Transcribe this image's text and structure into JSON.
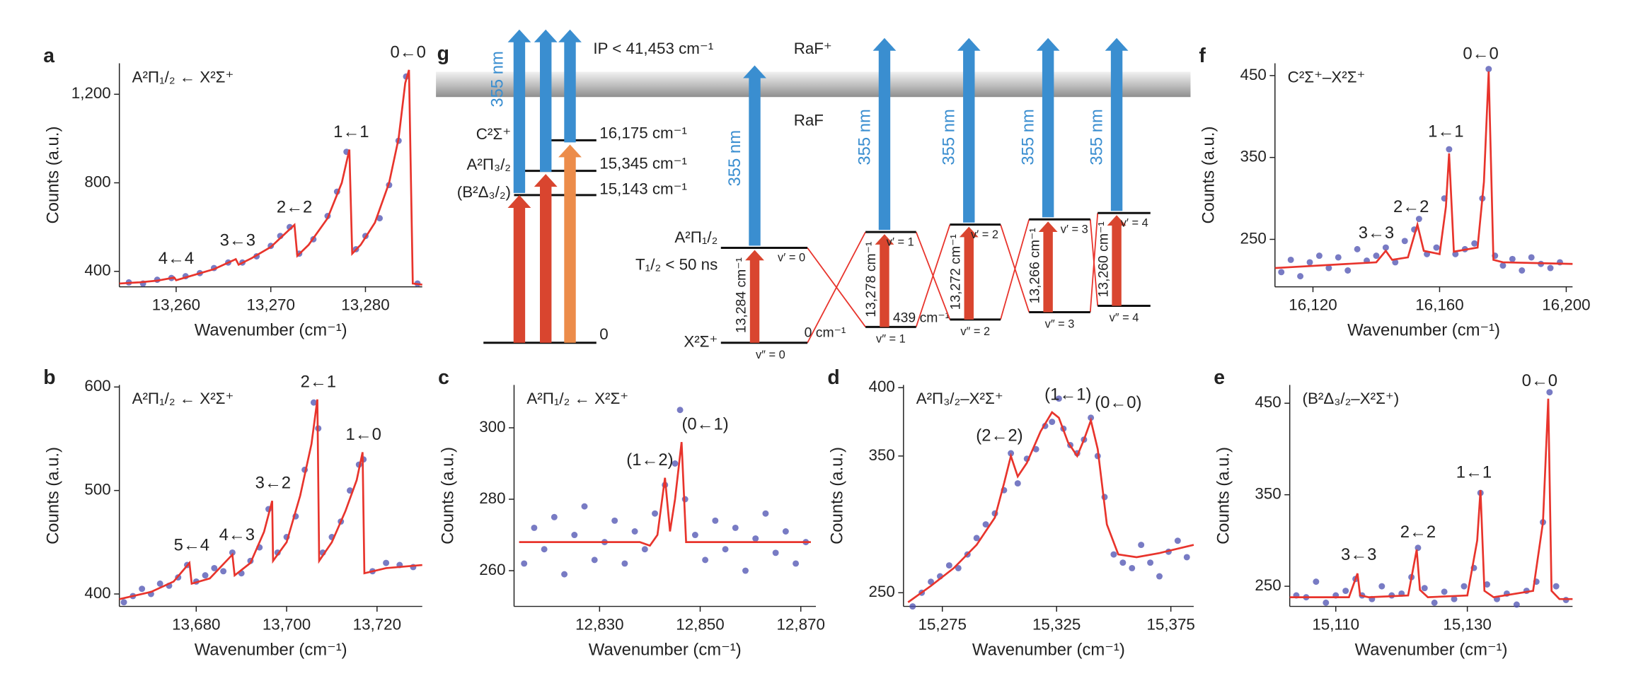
{
  "chart_data": [
    {
      "type": "line",
      "label": "a",
      "title": "A²Π₁/₂ ← X²Σ⁺",
      "xlabel": "Wavenumber (cm⁻¹)",
      "ylabel": "Counts (a.u.)",
      "xlim": [
        13254,
        13286
      ],
      "ylim": [
        330,
        1340
      ],
      "xticks": [
        {
          "value": 13260,
          "label": "13,260"
        },
        {
          "value": 13270,
          "label": "13,270"
        },
        {
          "value": 13280,
          "label": "13,280"
        }
      ],
      "yticks": [
        400,
        800,
        {
          "value": 1200,
          "label": "1,200"
        }
      ],
      "series": [
        {
          "style": "points",
          "color": "#4b4fb0",
          "x": [
            13255,
            13256.5,
            13258,
            13259.5,
            13261,
            13262.5,
            13264,
            13265.5,
            13267,
            13268.5,
            13270,
            13271,
            13272,
            13273,
            13274.5,
            13276,
            13277,
            13278,
            13279,
            13280,
            13281.5,
            13282.5,
            13283.5,
            13284.3,
            13285.5
          ],
          "values": [
            350,
            345,
            362,
            370,
            378,
            392,
            415,
            440,
            440,
            468,
            515,
            560,
            600,
            480,
            545,
            650,
            760,
            940,
            500,
            560,
            640,
            790,
            990,
            1280,
            345
          ]
        },
        {
          "style": "line",
          "color": "#e8342c",
          "x": [
            13254,
            13256,
            13258,
            13259.8,
            13260,
            13262,
            13264,
            13266.3,
            13266.6,
            13268,
            13270,
            13271.5,
            13272.5,
            13272.8,
            13274,
            13276,
            13277.5,
            13278.3,
            13278.6,
            13279.5,
            13281,
            13282.5,
            13283.5,
            13284.2,
            13284.6,
            13285,
            13286
          ],
          "values": [
            345,
            350,
            358,
            372,
            360,
            385,
            410,
            455,
            430,
            460,
            510,
            570,
            610,
            470,
            520,
            640,
            800,
            950,
            480,
            520,
            620,
            800,
            1000,
            1250,
            1310,
            345,
            340
          ]
        }
      ],
      "annotations": [
        {
          "text": "4←4",
          "x": 13260,
          "y": 378
        },
        {
          "text": "3←3",
          "x": 13266.5,
          "y": 460
        },
        {
          "text": "2←2",
          "x": 13272.5,
          "y": 610
        },
        {
          "text": "1←1",
          "x": 13278.5,
          "y": 950
        },
        {
          "text": "0←0",
          "x": 13284.5,
          "y": 1310
        }
      ]
    },
    {
      "type": "line",
      "label": "b",
      "title": "A²Π₁/₂ ← X²Σ⁺",
      "xlabel": "Wavenumber (cm⁻¹)",
      "ylabel": "Counts (a.u.)",
      "xlim": [
        13663,
        13730
      ],
      "ylim": [
        388,
        602
      ],
      "xticks": [
        {
          "value": 13680,
          "label": "13,680"
        },
        {
          "value": 13700,
          "label": "13,700"
        },
        {
          "value": 13720,
          "label": "13,720"
        }
      ],
      "yticks": [
        400,
        500,
        600
      ],
      "series": [
        {
          "style": "points",
          "color": "#4b4fb0",
          "x": [
            13664,
            13666,
            13668,
            13670,
            13672,
            13674,
            13676,
            13678,
            13680,
            13682,
            13684,
            13686,
            13688,
            13690,
            13692,
            13694,
            13696,
            13698,
            13700,
            13702,
            13704,
            13706,
            13707,
            13708,
            13710,
            13712,
            13714,
            13716,
            13717,
            13719,
            13722,
            13725,
            13728
          ],
          "values": [
            392,
            398,
            405,
            400,
            410,
            408,
            416,
            428,
            412,
            418,
            425,
            422,
            440,
            420,
            432,
            445,
            482,
            440,
            455,
            475,
            520,
            585,
            560,
            440,
            455,
            470,
            500,
            525,
            530,
            422,
            430,
            428,
            426
          ]
        },
        {
          "style": "line",
          "color": "#e8342c",
          "x": [
            13663,
            13670,
            13675,
            13678.5,
            13679,
            13683,
            13688,
            13688.5,
            13692,
            13695,
            13696.8,
            13697,
            13700,
            13703,
            13705.5,
            13706.8,
            13707.2,
            13710,
            13713,
            13715.5,
            13716.8,
            13717.2,
            13722,
            13730
          ],
          "values": [
            395,
            402,
            412,
            430,
            410,
            415,
            438,
            418,
            430,
            460,
            490,
            432,
            450,
            495,
            545,
            588,
            432,
            450,
            480,
            510,
            537,
            420,
            425,
            428
          ]
        }
      ],
      "annotations": [
        {
          "text": "5←4",
          "x": 13679,
          "y": 430
        },
        {
          "text": "4←3",
          "x": 13689,
          "y": 440
        },
        {
          "text": "3←2",
          "x": 13697,
          "y": 490
        },
        {
          "text": "2←1",
          "x": 13707,
          "y": 588
        },
        {
          "text": "1←0",
          "x": 13717,
          "y": 537
        }
      ]
    },
    {
      "type": "line",
      "label": "c",
      "title": "A²Π₁/₂ ← X²Σ⁺",
      "xlabel": "Wavenumber (cm⁻¹)",
      "ylabel": "Counts (a.u.)",
      "xlim": [
        12813,
        12873
      ],
      "ylim": [
        250,
        312
      ],
      "xticks": [
        {
          "value": 12830,
          "label": "12,830"
        },
        {
          "value": 12850,
          "label": "12,850"
        },
        {
          "value": 12870,
          "label": "12,870"
        }
      ],
      "yticks": [
        260,
        280,
        300
      ],
      "series": [
        {
          "style": "points",
          "color": "#4b4fb0",
          "x": [
            12815,
            12817,
            12819,
            12821,
            12823,
            12825,
            12827,
            12829,
            12831,
            12833,
            12835,
            12837,
            12839,
            12841,
            12843,
            12845,
            12846,
            12847,
            12849,
            12851,
            12853,
            12855,
            12857,
            12859,
            12861,
            12863,
            12865,
            12867,
            12869,
            12871
          ],
          "values": [
            262,
            272,
            266,
            275,
            259,
            270,
            278,
            263,
            268,
            274,
            262,
            271,
            266,
            276,
            284,
            290,
            305,
            280,
            270,
            263,
            274,
            266,
            272,
            260,
            269,
            276,
            265,
            271,
            262,
            268
          ]
        },
        {
          "style": "line",
          "color": "#e8342c",
          "x": [
            12814,
            12838,
            12840,
            12841.5,
            12843,
            12844,
            12845,
            12846.3,
            12847.2,
            12848,
            12872
          ],
          "values": [
            268,
            268,
            267,
            270,
            286,
            271,
            280,
            296,
            268,
            268,
            268
          ]
        }
      ],
      "annotations": [
        {
          "text": "(1←2)",
          "x": 12840,
          "y": 286
        },
        {
          "text": "(0←1)",
          "x": 12851,
          "y": 296
        }
      ]
    },
    {
      "type": "line",
      "label": "d",
      "title": "A²Π₃/₂–X²Σ⁺",
      "xlabel": "Wavenumber (cm⁻¹)",
      "ylabel": "Counts (a.u.)",
      "xlim": [
        15258,
        15385
      ],
      "ylim": [
        240,
        402
      ],
      "xticks": [
        {
          "value": 15275,
          "label": "15,275"
        },
        {
          "value": 15325,
          "label": "15,325"
        },
        {
          "value": 15375,
          "label": "15,375"
        }
      ],
      "yticks": [
        250,
        350,
        400
      ],
      "series": [
        {
          "style": "points",
          "color": "#4b4fb0",
          "x": [
            15262,
            15266,
            15270,
            15274,
            15278,
            15282,
            15286,
            15290,
            15294,
            15298,
            15302,
            15305,
            15308,
            15312,
            15316,
            15320,
            15323,
            15326,
            15328,
            15331,
            15334,
            15337,
            15340,
            15343,
            15346,
            15350,
            15354,
            15358,
            15362,
            15366,
            15370,
            15374,
            15378,
            15382
          ],
          "values": [
            240,
            250,
            258,
            262,
            270,
            268,
            278,
            290,
            300,
            308,
            325,
            352,
            330,
            348,
            355,
            372,
            375,
            392,
            370,
            358,
            352,
            362,
            378,
            350,
            320,
            278,
            272,
            268,
            285,
            272,
            262,
            280,
            288,
            276
          ]
        },
        {
          "style": "line",
          "color": "#e8342c",
          "x": [
            15260,
            15270,
            15280,
            15290,
            15298,
            15302,
            15305,
            15308,
            15312,
            15318,
            15323,
            15326,
            15330,
            15334,
            15337,
            15340,
            15343,
            15347,
            15352,
            15360,
            15370,
            15385
          ],
          "values": [
            243,
            255,
            268,
            285,
            305,
            330,
            350,
            335,
            345,
            368,
            382,
            378,
            360,
            350,
            362,
            376,
            355,
            300,
            278,
            276,
            279,
            285
          ]
        }
      ],
      "annotations": [
        {
          "text": "(2←2)",
          "x": 15300,
          "y": 352
        },
        {
          "text": "(1←1)",
          "x": 15330,
          "y": 382
        },
        {
          "text": "(0←0)",
          "x": 15352,
          "y": 376
        }
      ]
    },
    {
      "type": "line",
      "label": "e",
      "title": "(B²Δ₃/₂–X²Σ⁺)",
      "xlabel": "Wavenumber (cm⁻¹)",
      "ylabel": "Counts (a.u.)",
      "xlim": [
        15103,
        15146
      ],
      "ylim": [
        228,
        470
      ],
      "xticks": [
        {
          "value": 15110,
          "label": "15,110"
        },
        {
          "value": 15130,
          "label": "15,130"
        }
      ],
      "yticks": [
        250,
        350,
        450
      ],
      "series": [
        {
          "style": "points",
          "color": "#4b4fb0",
          "x": [
            15104,
            15105.5,
            15107,
            15108.5,
            15110,
            15111.5,
            15113,
            15114,
            15115.5,
            15117,
            15118.5,
            15120,
            15121.5,
            15122.5,
            15123.5,
            15125,
            15126.5,
            15128,
            15129.5,
            15131,
            15132,
            15133,
            15134.5,
            15136,
            15137.5,
            15139,
            15140.5,
            15141.5,
            15142.5,
            15143.5,
            15145
          ],
          "values": [
            240,
            238,
            255,
            232,
            240,
            245,
            258,
            240,
            236,
            250,
            240,
            242,
            260,
            292,
            248,
            232,
            244,
            236,
            250,
            270,
            352,
            252,
            236,
            242,
            230,
            245,
            255,
            320,
            462,
            250,
            235
          ]
        },
        {
          "style": "line",
          "color": "#e8342c",
          "x": [
            15103,
            15112,
            15113.3,
            15113.7,
            15115,
            15121,
            15122.3,
            15122.8,
            15124,
            15130,
            15131.5,
            15132,
            15132.6,
            15134,
            15140,
            15141.5,
            15142.3,
            15142.8,
            15144,
            15146
          ],
          "values": [
            238,
            238,
            264,
            240,
            238,
            240,
            290,
            246,
            238,
            240,
            300,
            355,
            245,
            238,
            245,
            320,
            455,
            245,
            236,
            236
          ]
        }
      ],
      "annotations": [
        {
          "text": "3←3",
          "x": 15113.5,
          "y": 265
        },
        {
          "text": "2←2",
          "x": 15122.5,
          "y": 290
        },
        {
          "text": "1←1",
          "x": 15131,
          "y": 355
        },
        {
          "text": "0←0",
          "x": 15141,
          "y": 455
        }
      ]
    },
    {
      "type": "line",
      "label": "f",
      "title": "C²Σ⁺–X²Σ⁺",
      "xlabel": "Wavenumber (cm⁻¹)",
      "ylabel": "Counts (a.u.)",
      "xlim": [
        16108,
        16202
      ],
      "ylim": [
        192,
        465
      ],
      "xticks": [
        {
          "value": 16120,
          "label": "16,120"
        },
        {
          "value": 16160,
          "label": "16,160"
        },
        {
          "value": 16200,
          "label": "16,200"
        }
      ],
      "yticks": [
        250,
        350,
        450
      ],
      "series": [
        {
          "style": "points",
          "color": "#4b4fb0",
          "x": [
            16110,
            16113,
            16116,
            16119,
            16122,
            16125,
            16128,
            16131,
            16134,
            16137,
            16140,
            16143,
            16146,
            16149,
            16152,
            16153.5,
            16156,
            16159,
            16161.5,
            16163,
            16165,
            16168,
            16171,
            16173.5,
            16175.5,
            16177.5,
            16180,
            16183,
            16186,
            16189,
            16192,
            16195,
            16198
          ],
          "values": [
            210,
            225,
            205,
            222,
            230,
            215,
            228,
            212,
            238,
            224,
            230,
            240,
            222,
            248,
            262,
            275,
            232,
            240,
            300,
            360,
            232,
            238,
            245,
            300,
            458,
            230,
            218,
            226,
            212,
            228,
            220,
            215,
            222
          ]
        },
        {
          "style": "line",
          "color": "#e8342c",
          "x": [
            16108,
            16140,
            16143,
            16145,
            16150,
            16153,
            16155,
            16160,
            16162,
            16163,
            16164.5,
            16172,
            16174,
            16175.5,
            16177,
            16180,
            16202
          ],
          "values": [
            215,
            222,
            236,
            225,
            228,
            268,
            236,
            232,
            290,
            355,
            235,
            240,
            320,
            455,
            225,
            222,
            220
          ]
        }
      ],
      "annotations": [
        {
          "text": "3←3",
          "x": 16140,
          "y": 236
        },
        {
          "text": "2←2",
          "x": 16151,
          "y": 268
        },
        {
          "text": "1←1",
          "x": 16162,
          "y": 360
        },
        {
          "text": "0←0",
          "x": 16173,
          "y": 455
        }
      ]
    }
  ],
  "diagram": {
    "label": "g",
    "ionization_potential": "IP < 41,453 cm⁻¹",
    "ion": "RaF⁺",
    "molecule": "RaF",
    "laser": "355 nm",
    "levels": [
      {
        "name": "C²Σ⁺",
        "energy": "16,175 cm⁻¹"
      },
      {
        "name": "A²Π₃/₂",
        "energy": "15,345 cm⁻¹"
      },
      {
        "name": "(B²Δ₃/₂)",
        "energy": "15,143 cm⁻¹"
      },
      {
        "energy": "0"
      }
    ],
    "excited_state": "A²Π₁/₂",
    "lifetime": "T₁/₂ < 50 ns",
    "ground_state": "X²Σ⁺",
    "ground_energies": [
      "0 cm⁻¹",
      "439 cm⁻¹"
    ],
    "transitions": [
      "13,284 cm⁻¹",
      "13,278 cm⁻¹",
      "13,272 cm⁻¹",
      "13,266 cm⁻¹",
      "13,260 cm⁻¹"
    ],
    "upper_v": [
      "v′ = 0",
      "v′ = 1",
      "v′ = 2",
      "v′ = 3",
      "v′ = 4"
    ],
    "lower_v": [
      "v″ = 0",
      "v″ = 1",
      "v″ = 2",
      "v″ = 3",
      "v″ = 4"
    ]
  }
}
